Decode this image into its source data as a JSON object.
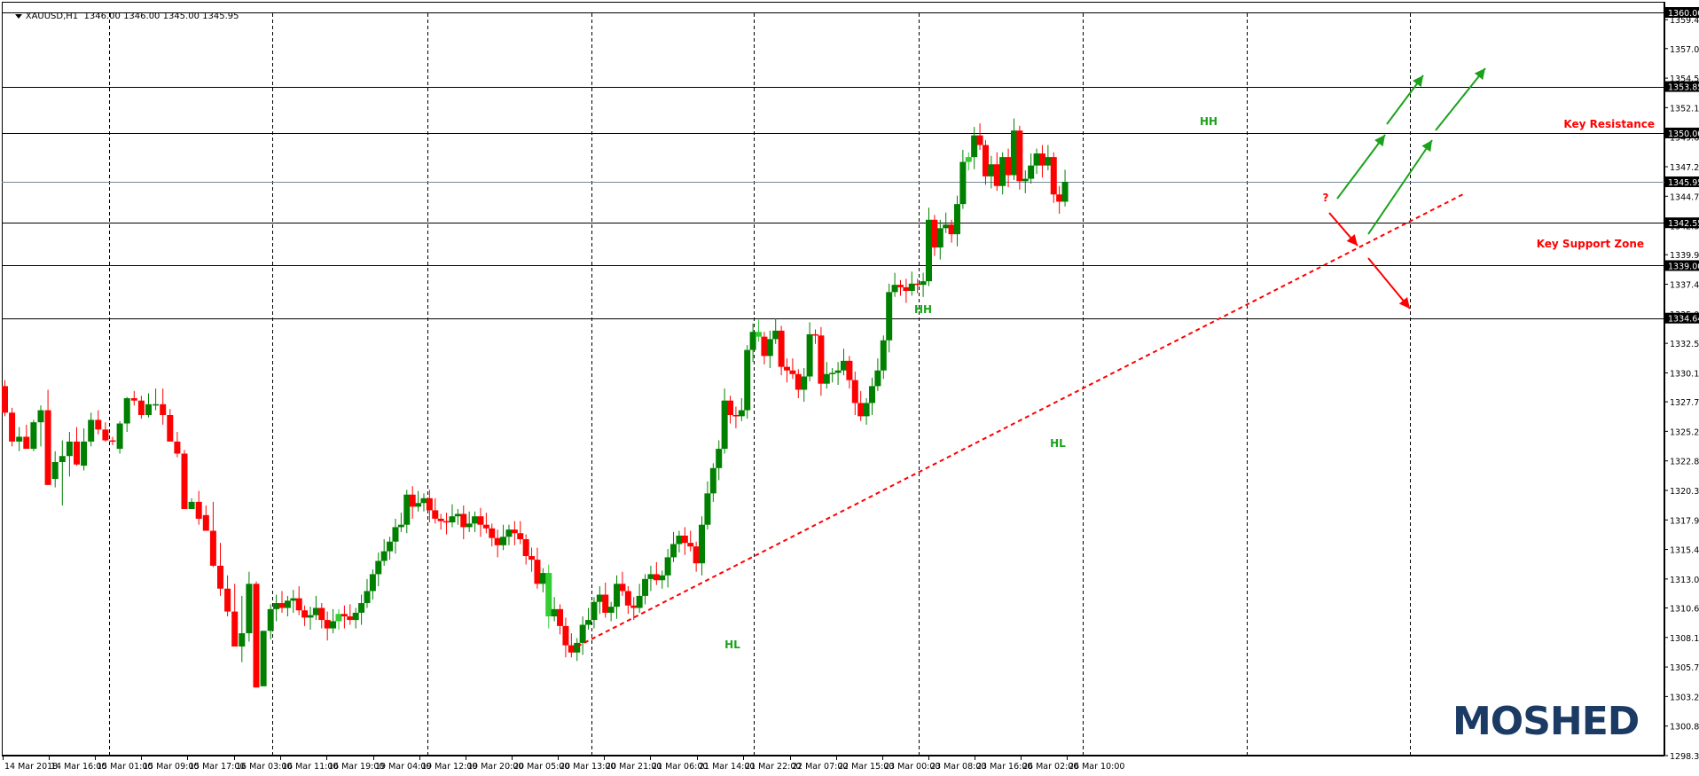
{
  "window": {
    "symbol": "XAUUSD,H1",
    "ohlc_header": "1346.00 1346.00 1345.00 1345.95"
  },
  "watermark": "MOSHED",
  "colors": {
    "bull": "#008000",
    "bear": "#ff0000",
    "doji_bright": "#32cd32",
    "level_line": "#000000",
    "bid_line": "#778899",
    "annotation_green": "#1aa31a",
    "annotation_red": "#ff0000",
    "grid_dash": "#000000",
    "watermark": "#1b3a64",
    "label_bg": "#000000",
    "label_fg": "#ffffff"
  },
  "chart_data": {
    "type": "candlestick",
    "title": "XAUUSD,H1",
    "ylim": [
      1298.35,
      1360.0
    ],
    "y_ticks": [
      "1359.40",
      "1357.00",
      "1354.55",
      "1352.10",
      "1349.65",
      "1347.20",
      "1344.75",
      "1342.30",
      "1339.90",
      "1337.45",
      "1335.00",
      "1332.55",
      "1330.10",
      "1327.70",
      "1325.25",
      "1322.80",
      "1320.35",
      "1317.90",
      "1315.45",
      "1313.00",
      "1310.60",
      "1308.15",
      "1305.70",
      "1303.25",
      "1300.80",
      "1298.35"
    ],
    "x_ticks": [
      "14 Mar 2018",
      "14 Mar 16:00",
      "15 Mar 01:00",
      "15 Mar 09:00",
      "15 Mar 17:00",
      "16 Mar 03:00",
      "16 Mar 11:00",
      "16 Mar 19:00",
      "19 Mar 04:00",
      "19 Mar 12:00",
      "19 Mar 20:00",
      "20 Mar 05:00",
      "20 Mar 13:00",
      "20 Mar 21:00",
      "21 Mar 06:00",
      "21 Mar 14:00",
      "21 Mar 22:00",
      "22 Mar 07:00",
      "22 Mar 15:00",
      "23 Mar 00:00",
      "23 Mar 08:00",
      "23 Mar 16:00",
      "26 Mar 02:00",
      "26 Mar 10:00"
    ],
    "horizontal_levels": [
      {
        "price": 1360.0,
        "label": "1360.00"
      },
      {
        "price": 1353.85,
        "label": "1353.85"
      },
      {
        "price": 1350.0,
        "label": "1350.00"
      },
      {
        "price": 1342.55,
        "label": "1342.55"
      },
      {
        "price": 1339.0,
        "label": "1339.00"
      },
      {
        "price": 1334.64,
        "label": "1334.64"
      }
    ],
    "bid_line": {
      "price": 1345.95,
      "label": "1345.95"
    },
    "annotations": [
      {
        "text": "Key Resistance",
        "price": 1351.0,
        "color": "red"
      },
      {
        "text": "Key Support Zone",
        "price": 1340.7,
        "color": "red"
      },
      {
        "text": "HH",
        "price": 1351.0,
        "color": "green"
      },
      {
        "text": "HH",
        "price": 1335.4,
        "color": "green"
      },
      {
        "text": "HL",
        "price": 1324.6,
        "color": "green"
      },
      {
        "text": "HL",
        "price": 1307.4,
        "color": "green"
      },
      {
        "text": "?",
        "price": 1344.5,
        "color": "red"
      }
    ],
    "trendline": {
      "from": [
        643,
        733
      ],
      "to": [
        1650,
        219
      ],
      "style": "dashed",
      "color": "red"
    },
    "ohlc": [
      [
        1329.0,
        1329.5,
        1326.5,
        1326.8
      ],
      [
        1326.8,
        1327.2,
        1324.0,
        1324.4
      ],
      [
        1324.4,
        1325.6,
        1323.6,
        1324.8
      ],
      [
        1324.8,
        1325.8,
        1323.8,
        1323.8
      ],
      [
        1323.8,
        1326.2,
        1323.6,
        1326.0
      ],
      [
        1326.0,
        1327.4,
        1324.0,
        1327.0
      ],
      [
        1327.0,
        1328.7,
        1320.8,
        1320.8
      ],
      [
        1321.3,
        1323.6,
        1320.6,
        1322.7
      ],
      [
        1322.7,
        1324.5,
        1319.1,
        1323.2
      ],
      [
        1323.2,
        1325.2,
        1321.5,
        1324.4
      ],
      [
        1324.4,
        1325.6,
        1322.4,
        1322.5
      ],
      [
        1322.4,
        1325.5,
        1322.0,
        1324.4
      ],
      [
        1324.4,
        1326.8,
        1324.0,
        1326.2
      ],
      [
        1326.2,
        1327.0,
        1325.0,
        1325.4
      ],
      [
        1325.4,
        1326.0,
        1324.4,
        1324.5
      ],
      [
        1324.5,
        1324.8,
        1324.1,
        1324.4
      ],
      [
        1323.8,
        1326.1,
        1323.4,
        1325.9
      ],
      [
        1325.9,
        1328.1,
        1325.2,
        1328.0
      ],
      [
        1328.0,
        1328.6,
        1327.4,
        1327.8
      ],
      [
        1327.8,
        1328.2,
        1326.3,
        1326.6
      ],
      [
        1326.6,
        1328.4,
        1326.4,
        1327.5
      ],
      [
        1327.5,
        1328.8,
        1327.0,
        1327.5
      ],
      [
        1327.5,
        1328.8,
        1325.8,
        1326.6
      ],
      [
        1326.6,
        1327.1,
        1324.6,
        1324.4
      ],
      [
        1324.4,
        1325.2,
        1323.1,
        1323.4
      ],
      [
        1323.4,
        1323.7,
        1318.8,
        1318.8
      ],
      [
        1318.8,
        1319.7,
        1319.0,
        1319.4
      ],
      [
        1319.4,
        1320.3,
        1317.5,
        1318.0
      ],
      [
        1318.3,
        1319.1,
        1317.1,
        1317.0
      ],
      [
        1317.0,
        1319.4,
        1314.0,
        1314.1
      ],
      [
        1314.1,
        1316.0,
        1311.6,
        1312.2
      ],
      [
        1312.2,
        1313.3,
        1309.9,
        1310.3
      ],
      [
        1310.3,
        1312.6,
        1307.6,
        1307.4
      ],
      [
        1307.4,
        1311.6,
        1306.1,
        1308.5
      ],
      [
        1308.5,
        1313.6,
        1307.8,
        1312.6
      ],
      [
        1312.6,
        1312.8,
        1304.0,
        1304.0
      ],
      [
        1304.1,
        1308.7,
        1305.4,
        1308.7
      ]
    ]
  },
  "price_axis_labels": {
    "top": "1360.00",
    "bottom": "1298.35"
  }
}
